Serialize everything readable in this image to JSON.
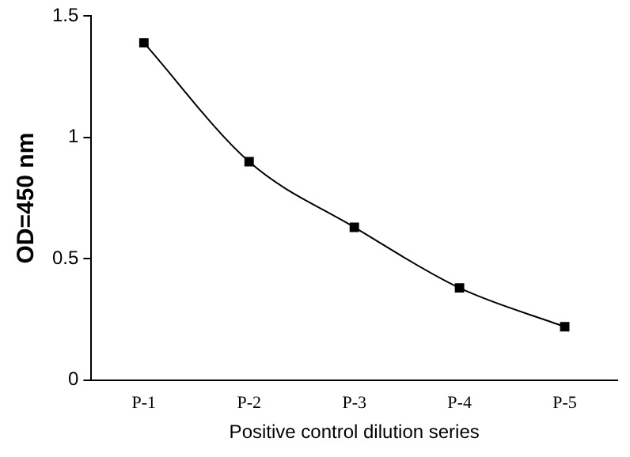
{
  "chart_data": {
    "type": "line",
    "xlabel": "Positive control dilution series",
    "ylabel": "OD=450 nm",
    "categories": [
      "P-1",
      "P-2",
      "P-3",
      "P-4",
      "P-5"
    ],
    "series": [
      {
        "color": "#000000",
        "values": [
          1.39,
          0.9,
          0.63,
          0.38,
          0.22
        ]
      }
    ],
    "ylim": [
      0,
      1.5
    ],
    "yticks": [
      0,
      0.5,
      1,
      1.5
    ],
    "grid": false,
    "legend": false,
    "marker": "square",
    "line_style": "solid"
  }
}
